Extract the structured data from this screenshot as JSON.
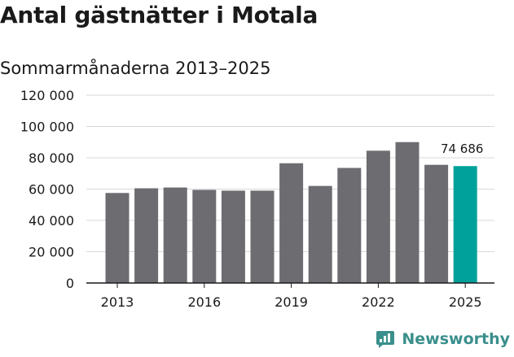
{
  "title": "Antal gästnätter i Motala",
  "subtitle": "Sommarmånaderna 2013–2025",
  "brand": {
    "name": "Newsworthy",
    "icon": "newsworthy-logo-icon"
  },
  "colors": {
    "bar": "#6d6c71",
    "highlight": "#00a19a",
    "grid": "#d9d9d9",
    "axis": "#1a1a1a",
    "text": "#1a1a1a",
    "brand": "#3a8f8c"
  },
  "chart_data": {
    "type": "bar",
    "title": "Antal gästnätter i Motala",
    "subtitle": "Sommarmånaderna 2013–2025",
    "categories": [
      "2013",
      "2014",
      "2015",
      "2016",
      "2017",
      "2018",
      "2019",
      "2020",
      "2021",
      "2022",
      "2023",
      "2024",
      "2025"
    ],
    "values": [
      57500,
      60500,
      61000,
      59500,
      59000,
      59000,
      76500,
      62000,
      73500,
      84500,
      90000,
      75500,
      74686
    ],
    "highlight_index": 12,
    "data_labels": [
      {
        "index": 12,
        "text": "74 686"
      }
    ],
    "xtick_labels": [
      "2013",
      "2016",
      "2019",
      "2022",
      "2025"
    ],
    "yticks": [
      0,
      20000,
      40000,
      60000,
      80000,
      100000,
      120000
    ],
    "ytick_labels": [
      "0",
      "20 000",
      "40 000",
      "60 000",
      "80 000",
      "100 000",
      "120 000"
    ],
    "ylim": [
      0,
      120000
    ],
    "xlabel": "",
    "ylabel": "",
    "grid": true,
    "legend": false
  }
}
